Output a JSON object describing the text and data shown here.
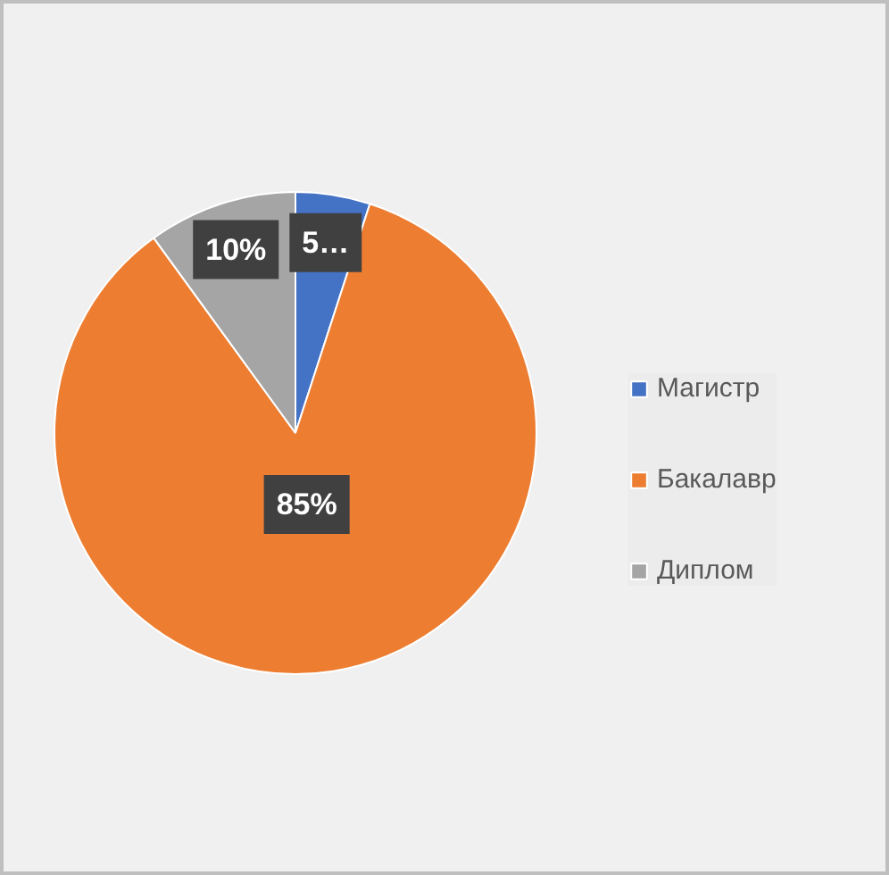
{
  "chart_data": {
    "type": "pie",
    "categories": [
      "Магистр",
      "Бакалавр",
      "Диплом"
    ],
    "values": [
      5,
      85,
      10
    ],
    "colors": [
      "#4472c4",
      "#ed7d31",
      "#a5a5a5"
    ],
    "value_labels": [
      "5…",
      "85%",
      "10%"
    ],
    "legend": "right"
  }
}
